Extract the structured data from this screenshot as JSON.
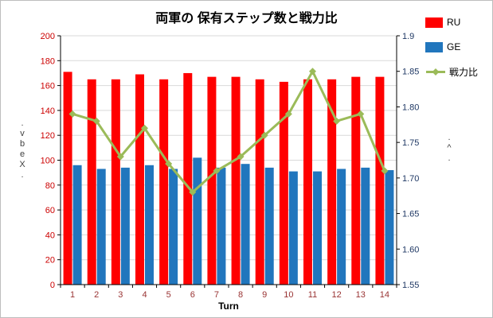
{
  "title": "両軍の 保有ステップ数と戦力比",
  "legend": [
    {
      "label": "RU",
      "color": "#FF0000",
      "marker": "bar"
    },
    {
      "label": "GE",
      "color": "#2176BD",
      "marker": "bar"
    },
    {
      "label": "戦力比",
      "color": "#9BBB59",
      "marker": "line"
    }
  ],
  "left_axis_label": ".\nv\nb\ne\nX\n.",
  "right_axis_label": ".\n^\n.",
  "chart_data": {
    "type": "bar",
    "title": "両軍の 保有ステップ数と戦力比",
    "xlabel": "Turn",
    "categories": [
      "1",
      "2",
      "3",
      "4",
      "5",
      "6",
      "7",
      "8",
      "9",
      "10",
      "11",
      "12",
      "13",
      "14"
    ],
    "series": [
      {
        "name": "RU",
        "type": "bar",
        "axis": "left",
        "color": "#FF0000",
        "values": [
          171,
          165,
          165,
          169,
          165,
          170,
          167,
          167,
          165,
          163,
          165,
          165,
          167,
          167
        ]
      },
      {
        "name": "GE",
        "type": "bar",
        "axis": "left",
        "color": "#2176BD",
        "values": [
          96,
          93,
          94,
          96,
          93,
          102,
          94,
          97,
          94,
          91,
          91,
          93,
          94,
          92
        ]
      },
      {
        "name": "戦力比",
        "type": "line",
        "axis": "right",
        "color": "#9BBB59",
        "values": [
          1.79,
          1.78,
          1.73,
          1.77,
          1.72,
          1.68,
          1.71,
          1.73,
          1.76,
          1.79,
          1.85,
          1.78,
          1.79,
          1.71
        ]
      }
    ],
    "left_axis": {
      "min": 0,
      "max": 200,
      "step": 20,
      "labels": [
        "0",
        "20",
        "40",
        "60",
        "80",
        "100",
        "120",
        "140",
        "160",
        "180",
        "200"
      ],
      "color": "#CC0000"
    },
    "right_axis": {
      "min": 1.55,
      "max": 1.9,
      "step": 0.05,
      "labels": [
        "1.55",
        "1.60",
        "1.65",
        "1.70",
        "1.75",
        "1.80",
        "1.85",
        "1.9"
      ],
      "color": "#1F3864"
    },
    "x_tick_color": "#993333",
    "xlabel_color": "#000000",
    "grid_color": "#D9D9D9",
    "axis_line_color": "#000000"
  }
}
